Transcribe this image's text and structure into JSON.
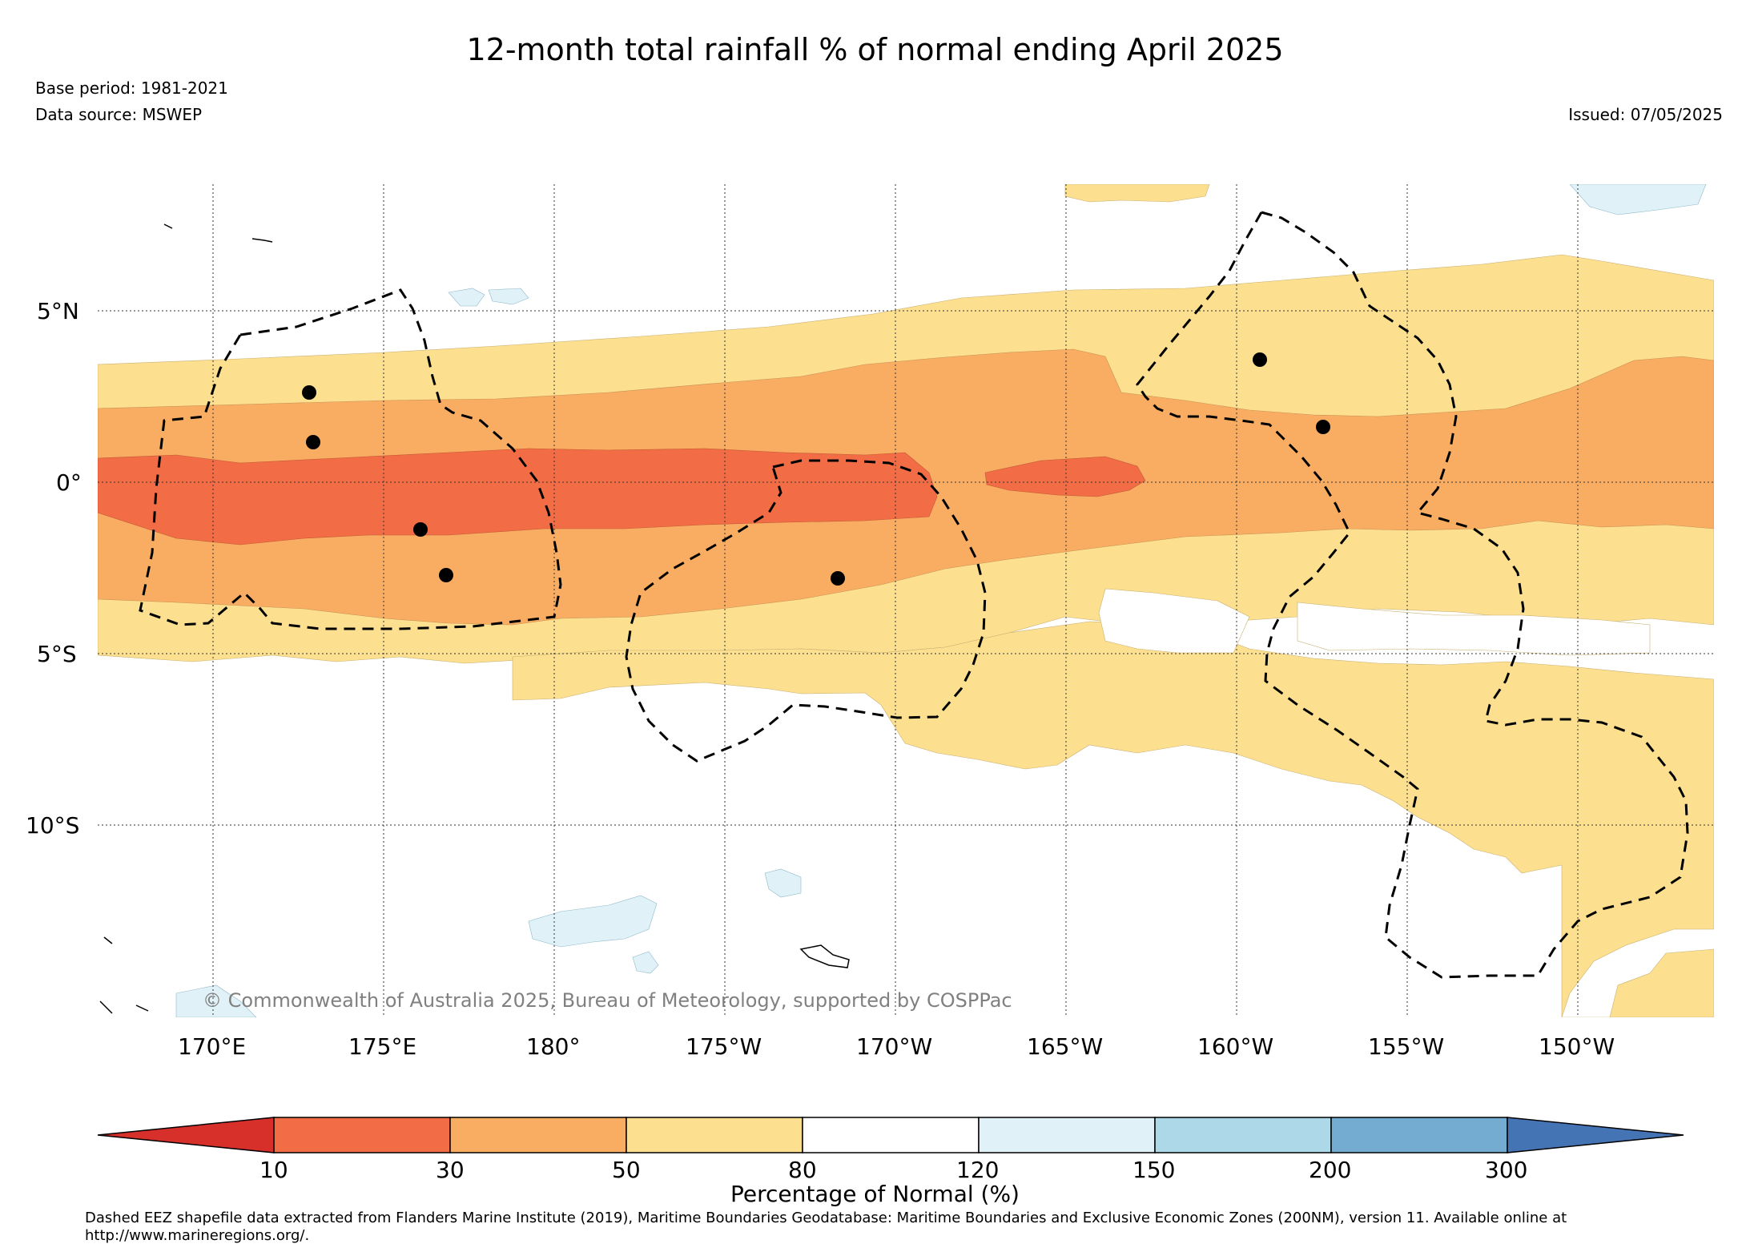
{
  "title": "12-month total rainfall % of normal ending April 2025",
  "base_period": "Base period: 1981-2021",
  "data_source": "Data source: MSWEP",
  "issued": "Issued: 07/05/2025",
  "copyright": "© Commonwealth of Australia 2025, Bureau of Meteorology, supported by COSPPac",
  "lat_labels": [
    "5°N",
    "0°",
    "5°S",
    "10°S"
  ],
  "lon_labels": [
    "170°E",
    "175°E",
    "180°",
    "175°W",
    "170°W",
    "165°W",
    "160°W",
    "155°W",
    "150°W"
  ],
  "colorbar": {
    "title": "Percentage of Normal (%)",
    "ticks": [
      "10",
      "30",
      "50",
      "80",
      "120",
      "150",
      "200",
      "300"
    ],
    "colors": [
      "#d7302a",
      "#f26c45",
      "#f9ad62",
      "#fddf90",
      "#ffffff",
      "#e0f2f8",
      "#acd8e8",
      "#74abd0",
      "#4574b4"
    ]
  },
  "footer": "Dashed EEZ shapefile data extracted from Flanders Marine Institute (2019), Maritime Boundaries Geodatabase: Maritime Boundaries and Exclusive Economic Zones (200NM), version 11. Available online at http://www.marineregions.org/."
}
